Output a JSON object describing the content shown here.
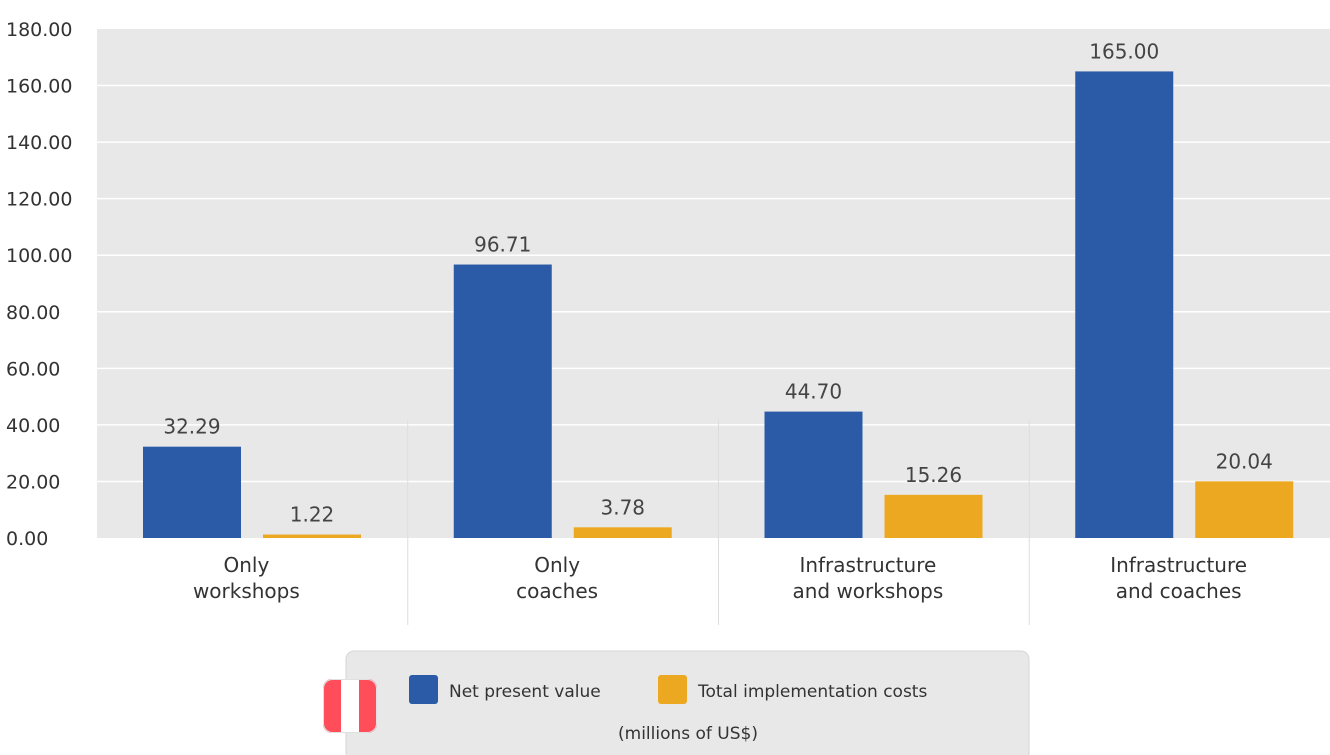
{
  "chart_data": {
    "type": "bar",
    "categories": [
      [
        "Only",
        "workshops"
      ],
      [
        "Only",
        "coaches"
      ],
      [
        "Infrastructure",
        "and workshops"
      ],
      [
        "Infrastructure",
        "and coaches"
      ]
    ],
    "series": [
      {
        "name": "Net present value",
        "values": [
          32.29,
          96.71,
          44.7,
          165.0
        ],
        "labels": [
          "32.29",
          "96.71",
          "44.70",
          "165.00"
        ]
      },
      {
        "name": "Total implementation costs",
        "values": [
          1.22,
          3.78,
          15.26,
          20.04
        ],
        "labels": [
          "1.22",
          "3.78",
          "15.26",
          "20.04"
        ]
      }
    ],
    "ylim": [
      0,
      180
    ],
    "yticks": [
      "0.00",
      "20.00",
      "40.00",
      "60.00",
      "80.00",
      "100.00",
      "120.00",
      "140.00",
      "160.00",
      "180.00"
    ],
    "ytick_step": 20,
    "grid": true,
    "legend_position": "bottom-center",
    "legend_note": "(millions of US$)",
    "colors": {
      "Net present value": "#2b5aa7",
      "Total implementation costs": "#eda821",
      "plot_background": "#e8e8e8",
      "gridline": "#ffffff",
      "flag_red": "#ff4d5a",
      "flag_white": "#ffffff"
    },
    "icons": [
      "peru-flag-icon"
    ]
  }
}
